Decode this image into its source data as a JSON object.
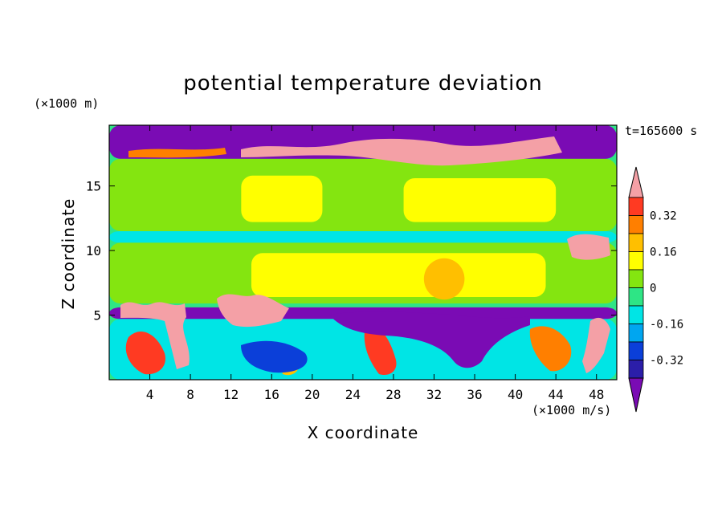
{
  "chart_data": {
    "type": "heatmap",
    "title": "potential temperature deviation",
    "xlabel": "X coordinate",
    "ylabel": "Z coordinate",
    "x_unit": "(×1000 m/s)",
    "y_unit": "(×1000 m)",
    "time_label": "t=165600 s",
    "xlim": [
      0,
      50
    ],
    "ylim": [
      0,
      19.7
    ],
    "x_ticks": [
      4,
      8,
      12,
      16,
      20,
      24,
      28,
      32,
      36,
      40,
      44,
      48
    ],
    "y_ticks": [
      5,
      10,
      15
    ],
    "colorbar": {
      "levels": [
        -0.4,
        -0.32,
        -0.24,
        -0.16,
        -0.08,
        0,
        0.08,
        0.16,
        0.24,
        0.32,
        0.4
      ],
      "colors": [
        "#7a0bb4",
        "#2b1ea9",
        "#0b3fd9",
        "#00a6f0",
        "#00e5e5",
        "#2ee585",
        "#84e510",
        "#ffff00",
        "#ffbf00",
        "#ff7f00",
        "#ff3a22",
        "#f4a0a6"
      ],
      "tick_labels": [
        "0.32",
        "0.16",
        "0",
        "-0.16",
        "-0.32"
      ],
      "tick_values": [
        0.32,
        0.16,
        0,
        -0.16,
        -0.32
      ],
      "extend": "both"
    },
    "field_regions": [
      {
        "x": [
          0,
          50
        ],
        "z": [
          17.1,
          19.7
        ],
        "value": -0.45
      },
      {
        "x": [
          0,
          50
        ],
        "z": [
          11.5,
          17.1
        ],
        "value": 0.03
      },
      {
        "x": [
          13,
          21
        ],
        "z": [
          12.2,
          15.8
        ],
        "value": 0.1
      },
      {
        "x": [
          29,
          44
        ],
        "z": [
          12.2,
          15.6
        ],
        "value": 0.1
      },
      {
        "x": [
          0,
          50
        ],
        "z": [
          10.6,
          11.5
        ],
        "value": -0.09
      },
      {
        "x": [
          0,
          50
        ],
        "z": [
          5.9,
          10.6
        ],
        "value": 0.03
      },
      {
        "x": [
          14,
          43
        ],
        "z": [
          6.4,
          9.8
        ],
        "value": 0.1
      },
      {
        "x": [
          31,
          35
        ],
        "z": [
          6.2,
          9.4
        ],
        "value": 0.2
      },
      {
        "x": [
          0,
          50
        ],
        "z": [
          4.7,
          5.6
        ],
        "value": -0.45
      },
      {
        "x": [
          0,
          50
        ],
        "z": [
          0,
          4.7
        ],
        "value": -0.1
      }
    ]
  }
}
